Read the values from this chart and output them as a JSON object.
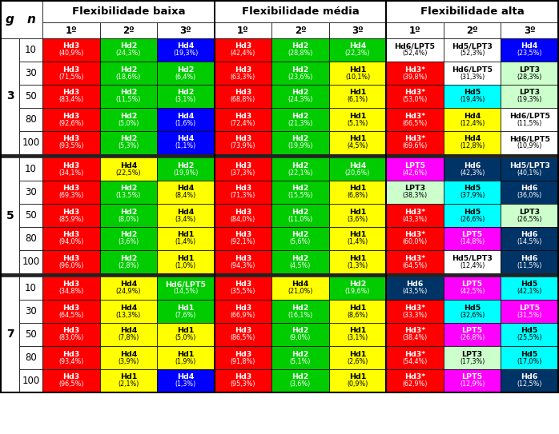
{
  "title_baixa": "Flexibilidade baixa",
  "title_media": "Flexibilidade média",
  "title_alta": "Flexibilidade alta",
  "table_data": {
    "g3": {
      "n10": {
        "baixa": [
          [
            "Hd3",
            "(40,9%)",
            "#ff0000"
          ],
          [
            "Hd2",
            "(24,3%)",
            "#00cc00"
          ],
          [
            "Hd4",
            "(19,3%)",
            "#0000ff"
          ]
        ],
        "media": [
          [
            "Hd3",
            "(42,4%)",
            "#ff0000"
          ],
          [
            "Hd2",
            "(28,8%)",
            "#00cc00"
          ],
          [
            "Hd4",
            "(22,3%)",
            "#00cc00"
          ]
        ],
        "alta": [
          [
            "Hd6/LPT5",
            "(52,4%)",
            "#ffffff"
          ],
          [
            "Hd5/LPT3",
            "(52,3%)",
            "#ffffff"
          ],
          [
            "Hd4",
            "(23,5%)",
            "#0000ff"
          ]
        ]
      },
      "n30": {
        "baixa": [
          [
            "Hd3",
            "(71,5%)",
            "#ff0000"
          ],
          [
            "Hd2",
            "(18,6%)",
            "#00cc00"
          ],
          [
            "Hd2",
            "(6,4%)",
            "#00cc00"
          ]
        ],
        "media": [
          [
            "Hd3",
            "(63,3%)",
            "#ff0000"
          ],
          [
            "Hd2",
            "(23,6%)",
            "#00cc00"
          ],
          [
            "Hd1",
            "(10,1%)",
            "#ffff00"
          ]
        ],
        "alta": [
          [
            "Hd3*",
            "(39,8%)",
            "#ff0000"
          ],
          [
            "Hd6/LPT5",
            "(31,3%)",
            "#ffffff"
          ],
          [
            "LPT3",
            "(28,3%)",
            "#ccffcc"
          ]
        ]
      },
      "n50": {
        "baixa": [
          [
            "Hd3",
            "(83,4%)",
            "#ff0000"
          ],
          [
            "Hd2",
            "(11,5%)",
            "#00cc00"
          ],
          [
            "Hd2",
            "(3,1%)",
            "#00cc00"
          ]
        ],
        "media": [
          [
            "Hd3",
            "(68,8%)",
            "#ff0000"
          ],
          [
            "Hd2",
            "(24,3%)",
            "#00cc00"
          ],
          [
            "Hd1",
            "(6,1%)",
            "#ffff00"
          ]
        ],
        "alta": [
          [
            "Hd3*",
            "(53,0%)",
            "#ff0000"
          ],
          [
            "Hd5",
            "(19,4%)",
            "#00ffff"
          ],
          [
            "LPT3",
            "(19,3%)",
            "#ccffcc"
          ]
        ]
      },
      "n80": {
        "baixa": [
          [
            "Hd3",
            "(92,6%)",
            "#ff0000"
          ],
          [
            "Hd2",
            "(5,0%)",
            "#00cc00"
          ],
          [
            "Hd4",
            "(1,6%)",
            "#0000ff"
          ]
        ],
        "media": [
          [
            "Hd3",
            "(72,4%)",
            "#ff0000"
          ],
          [
            "Hd2",
            "(21,3%)",
            "#00cc00"
          ],
          [
            "Hd1",
            "(5,1%)",
            "#ffff00"
          ]
        ],
        "alta": [
          [
            "Hd3*",
            "(66,5%)",
            "#ff0000"
          ],
          [
            "Hd4",
            "(12,4%)",
            "#ffff00"
          ],
          [
            "Hd6/LPT5",
            "(11,5%)",
            "#ffffff"
          ]
        ]
      },
      "n100": {
        "baixa": [
          [
            "Hd3",
            "(93,5%)",
            "#ff0000"
          ],
          [
            "Hd2",
            "(5,3%)",
            "#00cc00"
          ],
          [
            "Hd4",
            "(1,1%)",
            "#0000ff"
          ]
        ],
        "media": [
          [
            "Hd3",
            "(73,9%)",
            "#ff0000"
          ],
          [
            "Hd2",
            "(19,9%)",
            "#00cc00"
          ],
          [
            "Hd1",
            "(4,5%)",
            "#ffff00"
          ]
        ],
        "alta": [
          [
            "Hd3*",
            "(69,6%)",
            "#ff0000"
          ],
          [
            "Hd4",
            "(12,8%)",
            "#ffff00"
          ],
          [
            "Hd6/LPT5",
            "(10,9%)",
            "#ffffff"
          ]
        ]
      }
    },
    "g5": {
      "n10": {
        "baixa": [
          [
            "Hd3",
            "(34,1%)",
            "#ff0000"
          ],
          [
            "Hd4",
            "(22,5%)",
            "#ffff00"
          ],
          [
            "Hd2",
            "(19,9%)",
            "#00cc00"
          ]
        ],
        "media": [
          [
            "Hd3",
            "(37,3%)",
            "#ff0000"
          ],
          [
            "Hd2",
            "(22,1%)",
            "#00cc00"
          ],
          [
            "Hd4",
            "(20,6%)",
            "#00cc00"
          ]
        ],
        "alta": [
          [
            "LPT5",
            "(42,6%)",
            "#ff00ff"
          ],
          [
            "Hd6",
            "(42,3%)",
            "#003366"
          ],
          [
            "Hd5/LPT3",
            "(40,1%)",
            "#003366"
          ]
        ]
      },
      "n30": {
        "baixa": [
          [
            "Hd3",
            "(69,3%)",
            "#ff0000"
          ],
          [
            "Hd2",
            "(13,5%)",
            "#00cc00"
          ],
          [
            "Hd4",
            "(8,4%)",
            "#ffff00"
          ]
        ],
        "media": [
          [
            "Hd3",
            "(71,3%)",
            "#ff0000"
          ],
          [
            "Hd2",
            "(15,5%)",
            "#00cc00"
          ],
          [
            "Hd1",
            "(6,8%)",
            "#ffff00"
          ]
        ],
        "alta": [
          [
            "LPT3",
            "(38,3%)",
            "#ccffcc"
          ],
          [
            "Hd5",
            "(37,9%)",
            "#00ffff"
          ],
          [
            "Hd6",
            "(36,0%)",
            "#003366"
          ]
        ]
      },
      "n50": {
        "baixa": [
          [
            "Hd3",
            "(85,9%)",
            "#ff0000"
          ],
          [
            "Hd2",
            "(8,0%)",
            "#00cc00"
          ],
          [
            "Hd4",
            "(3,4%)",
            "#ffff00"
          ]
        ],
        "media": [
          [
            "Hd3",
            "(84,0%)",
            "#ff0000"
          ],
          [
            "Hd2",
            "(11,0%)",
            "#00cc00"
          ],
          [
            "Hd1",
            "(3,6%)",
            "#ffff00"
          ]
        ],
        "alta": [
          [
            "Hd3*",
            "(43,3%)",
            "#ff0000"
          ],
          [
            "Hd5",
            "(26,6%)",
            "#00ffff"
          ],
          [
            "LPT3",
            "(26,5%)",
            "#ccffcc"
          ]
        ]
      },
      "n80": {
        "baixa": [
          [
            "Hd3",
            "(94,0%)",
            "#ff0000"
          ],
          [
            "Hd2",
            "(3,6%)",
            "#00cc00"
          ],
          [
            "Hd1",
            "(1,4%)",
            "#ffff00"
          ]
        ],
        "media": [
          [
            "Hd3",
            "(92,1%)",
            "#ff0000"
          ],
          [
            "Hd2",
            "(5,6%)",
            "#00cc00"
          ],
          [
            "Hd1",
            "(1,4%)",
            "#ffff00"
          ]
        ],
        "alta": [
          [
            "Hd3*",
            "(60,0%)",
            "#ff0000"
          ],
          [
            "LPT5",
            "(14,8%)",
            "#ff00ff"
          ],
          [
            "Hd6",
            "(14,5%)",
            "#003366"
          ]
        ]
      },
      "n100": {
        "baixa": [
          [
            "Hd3",
            "(96,0%)",
            "#ff0000"
          ],
          [
            "Hd2",
            "(2,8%)",
            "#00cc00"
          ],
          [
            "Hd1",
            "(1,0%)",
            "#ffff00"
          ]
        ],
        "media": [
          [
            "Hd3",
            "(94,3%)",
            "#ff0000"
          ],
          [
            "Hd2",
            "(4,5%)",
            "#00cc00"
          ],
          [
            "Hd1",
            "(1,3%)",
            "#ffff00"
          ]
        ],
        "alta": [
          [
            "Hd3*",
            "(64,5%)",
            "#ff0000"
          ],
          [
            "Hd5/LPT3",
            "(12,4%)",
            "#ffffff"
          ],
          [
            "Hd6",
            "(11,5%)",
            "#003366"
          ]
        ]
      }
    },
    "g7": {
      "n10": {
        "baixa": [
          [
            "Hd3",
            "(34,8%)",
            "#ff0000"
          ],
          [
            "Hd4",
            "(24,9%)",
            "#ffff00"
          ],
          [
            "Hd6/LPT5",
            "(14,5%)",
            "#00cc00"
          ]
        ],
        "media": [
          [
            "Hd3",
            "(35,5%)",
            "#ff0000"
          ],
          [
            "Hd4",
            "(21,0%)",
            "#ffff00"
          ],
          [
            "Hd2",
            "(19,6%)",
            "#00cc00"
          ]
        ],
        "alta": [
          [
            "Hd6",
            "(43,5%)",
            "#003366"
          ],
          [
            "LPT5",
            "(42,5%)",
            "#ff00ff"
          ],
          [
            "Hd5",
            "(42,1%)",
            "#00ffff"
          ]
        ]
      },
      "n30": {
        "baixa": [
          [
            "Hd3",
            "(64,5%)",
            "#ff0000"
          ],
          [
            "Hd4",
            "(13,3%)",
            "#ffff00"
          ],
          [
            "Hd1",
            "(7,6%)",
            "#00cc00"
          ]
        ],
        "media": [
          [
            "Hd3",
            "(66,9%)",
            "#ff0000"
          ],
          [
            "Hd2",
            "(16,1%)",
            "#00cc00"
          ],
          [
            "Hd1",
            "(8,6%)",
            "#ffff00"
          ]
        ],
        "alta": [
          [
            "Hd3*",
            "(33,3%)",
            "#ff0000"
          ],
          [
            "Hd5",
            "(32,6%)",
            "#00ffff"
          ],
          [
            "LPT5",
            "(31,5%)",
            "#ff00ff"
          ]
        ]
      },
      "n50": {
        "baixa": [
          [
            "Hd3",
            "(83,0%)",
            "#ff0000"
          ],
          [
            "Hd4",
            "(7,8%)",
            "#ffff00"
          ],
          [
            "Hd1",
            "(5,0%)",
            "#ffff00"
          ]
        ],
        "media": [
          [
            "Hd3",
            "(86,5%)",
            "#ff0000"
          ],
          [
            "Hd2",
            "(9,0%)",
            "#00cc00"
          ],
          [
            "Hd1",
            "(3,1%)",
            "#ffff00"
          ]
        ],
        "alta": [
          [
            "Hd3*",
            "(38,4%)",
            "#ff0000"
          ],
          [
            "LPT5",
            "(26,8%)",
            "#ff00ff"
          ],
          [
            "Hd5",
            "(25,5%)",
            "#00ffff"
          ]
        ]
      },
      "n80": {
        "baixa": [
          [
            "Hd3",
            "(93,4%)",
            "#ff0000"
          ],
          [
            "Hd4",
            "(3,9%)",
            "#ffff00"
          ],
          [
            "Hd1",
            "(1,9%)",
            "#ffff00"
          ]
        ],
        "media": [
          [
            "Hd3",
            "(91,8%)",
            "#ff0000"
          ],
          [
            "Hd2",
            "(5,1%)",
            "#00cc00"
          ],
          [
            "Hd1",
            "(2,6%)",
            "#ffff00"
          ]
        ],
        "alta": [
          [
            "Hd3*",
            "(54,4%)",
            "#ff0000"
          ],
          [
            "LPT3",
            "(17,3%)",
            "#ccffcc"
          ],
          [
            "Hd5",
            "(17,0%)",
            "#00ffff"
          ]
        ]
      },
      "n100": {
        "baixa": [
          [
            "Hd3",
            "(96,5%)",
            "#ff0000"
          ],
          [
            "Hd1",
            "(2,1%)",
            "#ffff00"
          ],
          [
            "Hd4",
            "(1,3%)",
            "#0000ff"
          ]
        ],
        "media": [
          [
            "Hd3",
            "(95,3%)",
            "#ff0000"
          ],
          [
            "Hd2",
            "(3,6%)",
            "#00cc00"
          ],
          [
            "Hd1",
            "(0,9%)",
            "#ffff00"
          ]
        ],
        "alta": [
          [
            "Hd3*",
            "(62,9%)",
            "#ff0000"
          ],
          [
            "LPT5",
            "(12,9%)",
            "#ff00ff"
          ],
          [
            "Hd6",
            "(12,5%)",
            "#003366"
          ]
        ]
      }
    }
  }
}
